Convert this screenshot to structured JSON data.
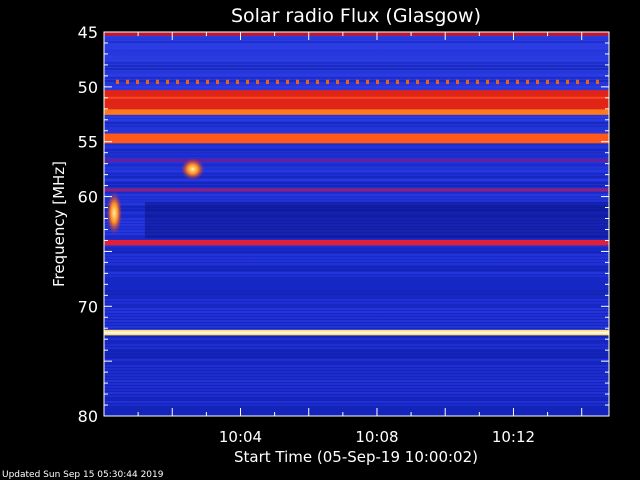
{
  "chart_data": {
    "type": "heatmap",
    "title": "Solar radio Flux (Glasgow)",
    "xlabel": "Start Time (05-Sep-19 10:00:02)",
    "ylabel": "Frequency [MHz]",
    "x_range_minutes": [
      0,
      14.8
    ],
    "y_range_mhz": [
      45,
      80
    ],
    "y_axis_inverted": true,
    "x_ticks": [
      {
        "minute": 4,
        "label": "10:04"
      },
      {
        "minute": 8,
        "label": "10:08"
      },
      {
        "minute": 12,
        "label": "10:12"
      }
    ],
    "y_ticks": [
      {
        "mhz": 45,
        "label": "45"
      },
      {
        "mhz": 50,
        "label": "50"
      },
      {
        "mhz": 55,
        "label": "55"
      },
      {
        "mhz": 60,
        "label": "60"
      },
      {
        "mhz": 70,
        "label": "70"
      },
      {
        "mhz": 80,
        "label": "80"
      }
    ],
    "background_color": "#1a2bd0",
    "bands": [
      {
        "mhz": 45.2,
        "width_mhz": 0.3,
        "color": "#c0182a"
      },
      {
        "mhz": 49.5,
        "width_mhz": 0.3,
        "color": "#e86020",
        "dashed": true
      },
      {
        "mhz": 51.4,
        "width_mhz": 2.2,
        "color": "#e02418"
      },
      {
        "mhz": 52.3,
        "width_mhz": 0.5,
        "color": "#ff7a1a"
      },
      {
        "mhz": 54.7,
        "width_mhz": 0.9,
        "color": "#ff5a1a"
      },
      {
        "mhz": 56.7,
        "width_mhz": 0.3,
        "color": "#6020a0"
      },
      {
        "mhz": 59.4,
        "width_mhz": 0.3,
        "color": "#8a2080"
      },
      {
        "mhz": 64.2,
        "width_mhz": 0.5,
        "color": "#e0203a"
      },
      {
        "mhz": 72.4,
        "width_mhz": 0.5,
        "color": "#ffe080"
      }
    ],
    "bursts": [
      {
        "minute": 2.6,
        "mhz": 57.5,
        "intensity": "high"
      },
      {
        "minute": 0.3,
        "mhz": 61.5,
        "intensity": "medium"
      }
    ]
  },
  "footer": {
    "updated": "Updated Sun Sep 15 05:30:44 2019"
  }
}
